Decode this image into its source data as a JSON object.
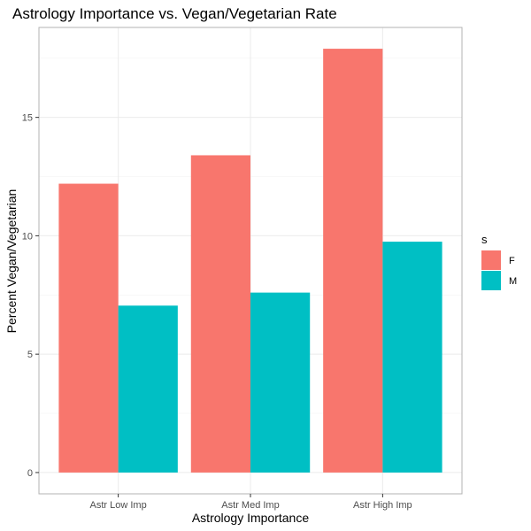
{
  "chart_data": {
    "type": "bar",
    "title": "Astrology Importance vs. Vegan/Vegetarian Rate",
    "xlabel": "Astrology Importance",
    "ylabel": "Percent Vegan/Vegetarian",
    "categories": [
      "Astr Low Imp",
      "Astr Med Imp",
      "Astr High Imp"
    ],
    "series": [
      {
        "name": "F",
        "color": "#F8766D",
        "values": [
          12.2,
          13.4,
          17.9
        ]
      },
      {
        "name": "M",
        "color": "#00BFC4",
        "values": [
          7.05,
          7.6,
          9.75
        ]
      }
    ],
    "ylim": [
      -0.9,
      18.8
    ],
    "yticks": [
      0,
      5,
      10,
      15
    ],
    "grid": true,
    "legend": {
      "title": "s",
      "position": "right"
    }
  }
}
